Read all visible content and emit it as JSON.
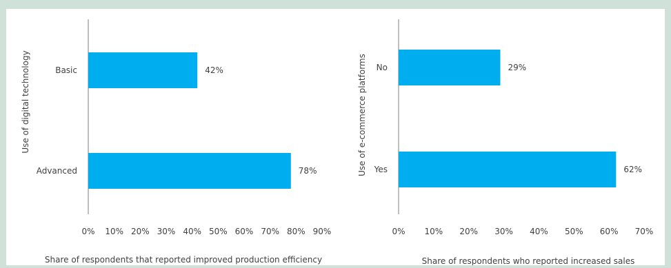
{
  "chart_data": [
    {
      "type": "bar",
      "orientation": "horizontal",
      "categories": [
        "Basic",
        "Advanced"
      ],
      "values": [
        42,
        78
      ],
      "value_labels": [
        "42%",
        "78%"
      ],
      "xlabel": "Share of respondents that reported improved production efficiency",
      "ylabel": "Use of digital technology",
      "xlim": [
        0,
        90
      ],
      "xticks": [
        "0%",
        "10%",
        "20%",
        "30%",
        "40%",
        "50%",
        "60%",
        "70%",
        "80%",
        "90%"
      ],
      "grid": false,
      "legend": "none",
      "bar_color": "#00adef"
    },
    {
      "type": "bar",
      "orientation": "horizontal",
      "categories": [
        "No",
        "Yes"
      ],
      "values": [
        29,
        62
      ],
      "value_labels": [
        "29%",
        "62%"
      ],
      "xlabel": "Share of respondents who reported increased sales",
      "ylabel": "Use of e-commerce platforms",
      "xlim": [
        0,
        70
      ],
      "xticks": [
        "0%",
        "10%",
        "20%",
        "30%",
        "40%",
        "50%",
        "60%",
        "70%"
      ],
      "grid": false,
      "legend": "none",
      "bar_color": "#00adef"
    }
  ]
}
